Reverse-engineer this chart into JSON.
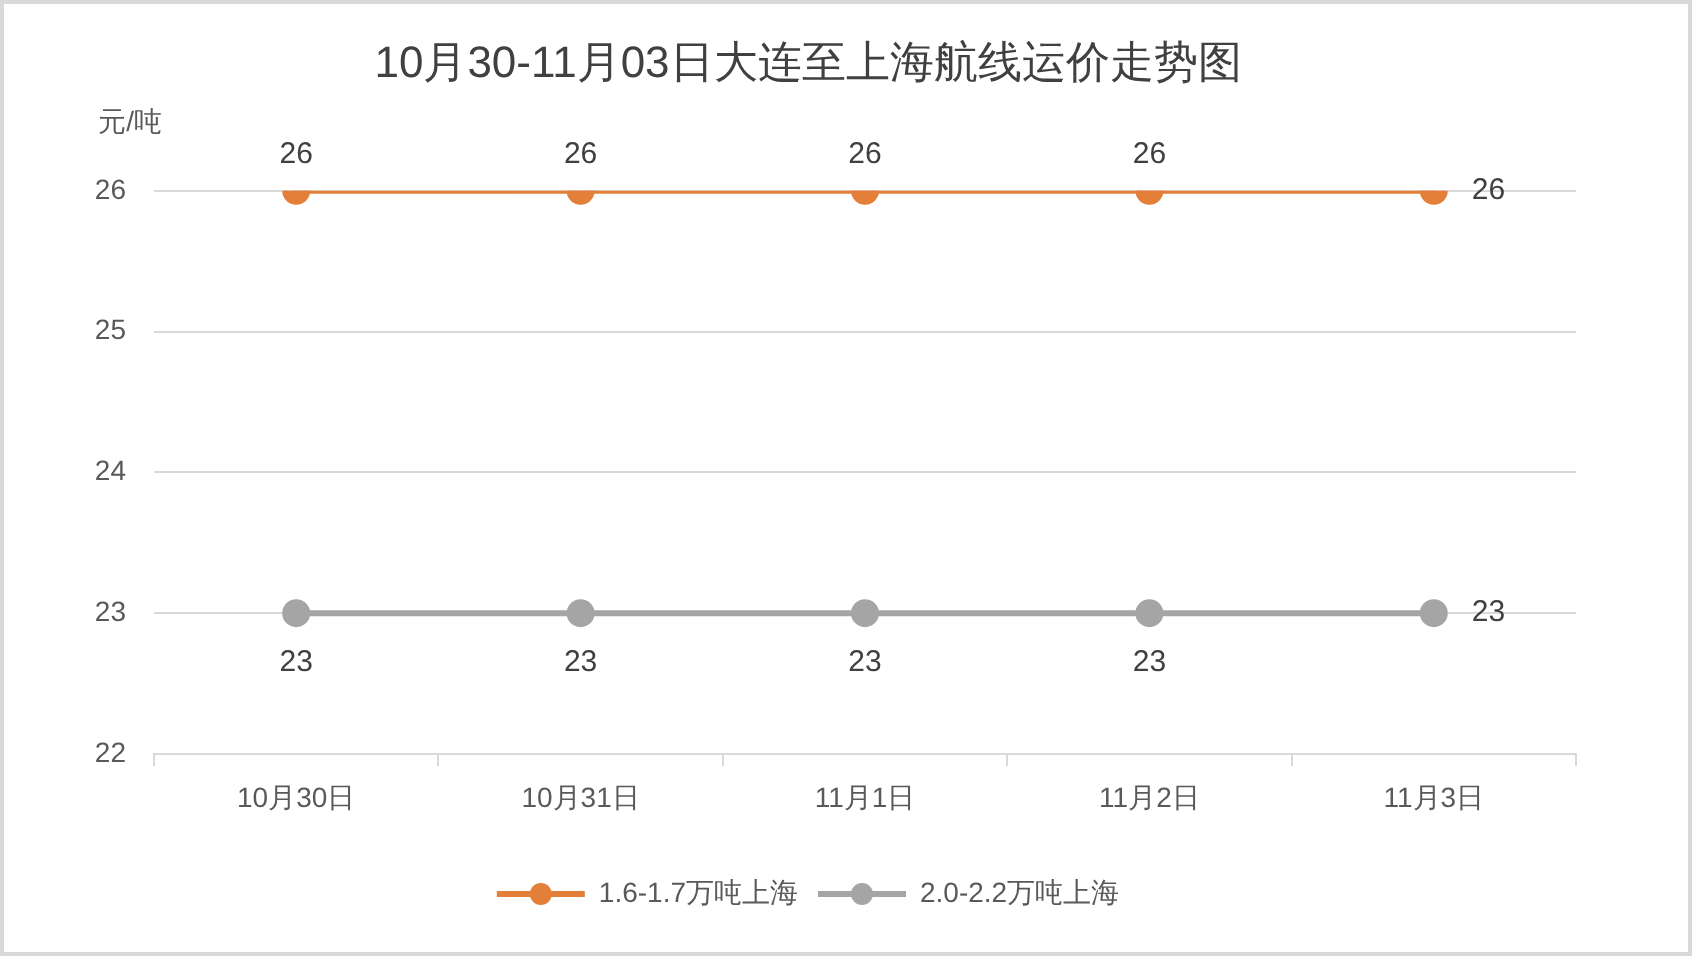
{
  "chart_data": {
    "type": "line",
    "title": "10月30-11月03日大连至上海航线运价走势图",
    "ylabel": "元/吨",
    "categories": [
      "10月30日",
      "10月31日",
      "11月1日",
      "11月2日",
      "11月3日"
    ],
    "series": [
      {
        "name": "1.6-1.7万吨上海",
        "color": "#e47f3a",
        "values": [
          26,
          26,
          26,
          26,
          26
        ]
      },
      {
        "name": "2.0-2.2万吨上海",
        "color": "#a5a5a5",
        "values": [
          23,
          23,
          23,
          23,
          23
        ]
      }
    ],
    "ylim": [
      22,
      26
    ],
    "yticks": [
      22,
      23,
      24,
      25,
      26
    ],
    "grid": "y",
    "legend": "bottom",
    "marker": "circle",
    "line_style": "solid",
    "data_labels": true
  }
}
